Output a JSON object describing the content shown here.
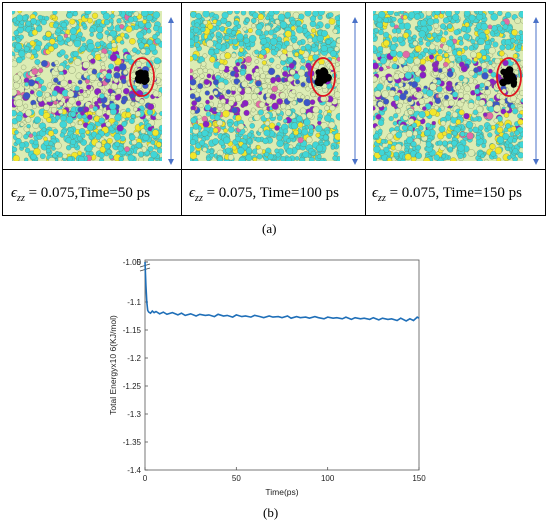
{
  "panel_a": {
    "label": "(a)",
    "captions": [
      {
        "symbol": "ϵ",
        "sub": "zz",
        "text": " = 0.075,Time=50 ps"
      },
      {
        "symbol": "ϵ",
        "sub": "zz",
        "text": " = 0.075, Time=100 ps"
      },
      {
        "symbol": "ϵ",
        "sub": "zz",
        "text": " = 0.075, Time=150 ps"
      }
    ],
    "colors": {
      "cyan": "#3fd6d8",
      "pale": "#dcecb4",
      "yellow": "#f2e62a",
      "purple": "#8a1fc4",
      "blue": "#3b55c8",
      "pink": "#e26aa8",
      "void": "#000000",
      "circle": "#e0141e",
      "arrow": "#4a72c8"
    }
  },
  "panel_b": {
    "label": "(b)"
  },
  "chart_data": {
    "type": "line",
    "title": "",
    "xlabel": "Time(ps)",
    "ylabel": "Total Energyx10 6(KJ/mol)",
    "xlim": [
      0,
      150
    ],
    "ylim": [
      -1.4,
      0
    ],
    "x_ticks": [
      "0",
      "50",
      "100",
      "150"
    ],
    "y_ticks": [
      "0",
      "-1.05",
      "-1.1",
      "-1.15",
      "-1.2",
      "-1.25",
      "-1.3",
      "-1.35",
      "-1.4"
    ],
    "axis_break": true,
    "grid": false,
    "line_color": "#1f6fb8",
    "series": [
      {
        "x": [
          0,
          0.5,
          1,
          1.5,
          2,
          3,
          4,
          5,
          6,
          8,
          10,
          12,
          15,
          18,
          20,
          22,
          25,
          28,
          30,
          33,
          35,
          38,
          40,
          43,
          45,
          48,
          50,
          53,
          55,
          58,
          60,
          63,
          65,
          68,
          70,
          73,
          75,
          78,
          80,
          83,
          85,
          88,
          90,
          93,
          95,
          98,
          100,
          103,
          105,
          108,
          110,
          113,
          115,
          118,
          120,
          123,
          125,
          128,
          130,
          133,
          135,
          138,
          140,
          143,
          145,
          147,
          149,
          150
        ],
        "y": [
          -1.03,
          -1.07,
          -1.1,
          -1.115,
          -1.118,
          -1.12,
          -1.116,
          -1.119,
          -1.117,
          -1.121,
          -1.118,
          -1.122,
          -1.119,
          -1.123,
          -1.12,
          -1.124,
          -1.121,
          -1.125,
          -1.122,
          -1.124,
          -1.123,
          -1.126,
          -1.122,
          -1.125,
          -1.124,
          -1.127,
          -1.123,
          -1.126,
          -1.125,
          -1.127,
          -1.124,
          -1.126,
          -1.128,
          -1.125,
          -1.127,
          -1.126,
          -1.128,
          -1.125,
          -1.129,
          -1.126,
          -1.128,
          -1.127,
          -1.129,
          -1.126,
          -1.128,
          -1.13,
          -1.127,
          -1.129,
          -1.128,
          -1.13,
          -1.127,
          -1.131,
          -1.128,
          -1.13,
          -1.129,
          -1.131,
          -1.128,
          -1.132,
          -1.129,
          -1.131,
          -1.13,
          -1.133,
          -1.129,
          -1.134,
          -1.13,
          -1.133,
          -1.127,
          -1.129
        ]
      }
    ]
  }
}
